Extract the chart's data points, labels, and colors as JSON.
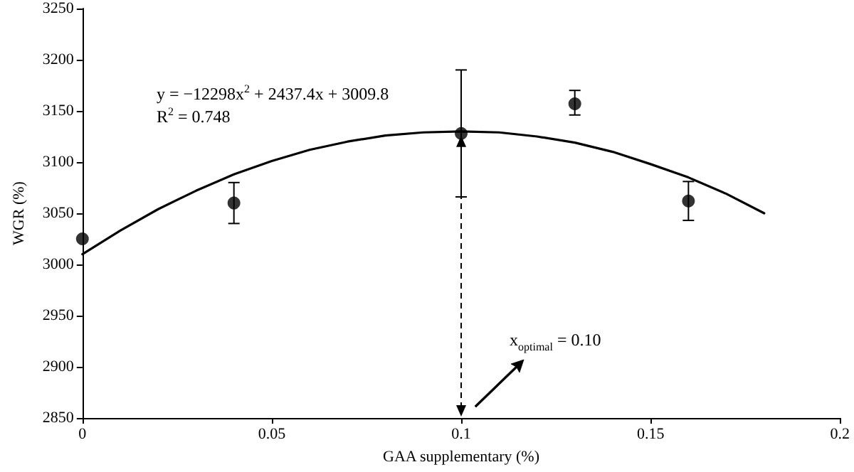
{
  "chart_data": {
    "type": "scatter",
    "xlabel": "GAA supplementary (%)",
    "ylabel": "WGR (%)",
    "xlim": [
      0,
      0.2
    ],
    "xticks": [
      0,
      0.05,
      0.1,
      0.15,
      0.2
    ],
    "ylim": [
      2850,
      3250
    ],
    "yticks": [
      2850,
      2900,
      2950,
      3000,
      3050,
      3100,
      3150,
      3200,
      3250
    ],
    "grid": false,
    "marker": "circle",
    "annotations": [
      "y = −12298x$^{2}$ + 2437.4x + 3009.8",
      "R$^{2}$ = 0.748",
      "x$_{optimal}$ = 0.10"
    ],
    "ref_lines": [
      {
        "axis": "x",
        "value": 0.1,
        "color": "#000000",
        "line_style": "dashed"
      }
    ],
    "series": [
      {
        "color": "#000000",
        "x": [
          0,
          0.04,
          0.1,
          0.13,
          0.16
        ],
        "values": [
          3025,
          3060,
          3128,
          3157,
          3062
        ],
        "errors": [
          null,
          [
            3040,
            3080
          ],
          [
            3066,
            3190
          ],
          [
            3146,
            3170
          ],
          [
            3043,
            3081
          ]
        ]
      },
      {
        "type": "line",
        "color": "#000000",
        "marker": "none",
        "line_style": "solid",
        "x": [
          0,
          0.01,
          0.02,
          0.03,
          0.04,
          0.05,
          0.06,
          0.07,
          0.08,
          0.09,
          0.1,
          0.11,
          0.12,
          0.13,
          0.14,
          0.15,
          0.16,
          0.17,
          0.18
        ],
        "values": [
          3010,
          3033,
          3054,
          3072,
          3088,
          3101,
          3112,
          3120,
          3126,
          3129,
          3130,
          3129,
          3125,
          3119,
          3110,
          3098,
          3085,
          3069,
          3050
        ]
      }
    ]
  }
}
